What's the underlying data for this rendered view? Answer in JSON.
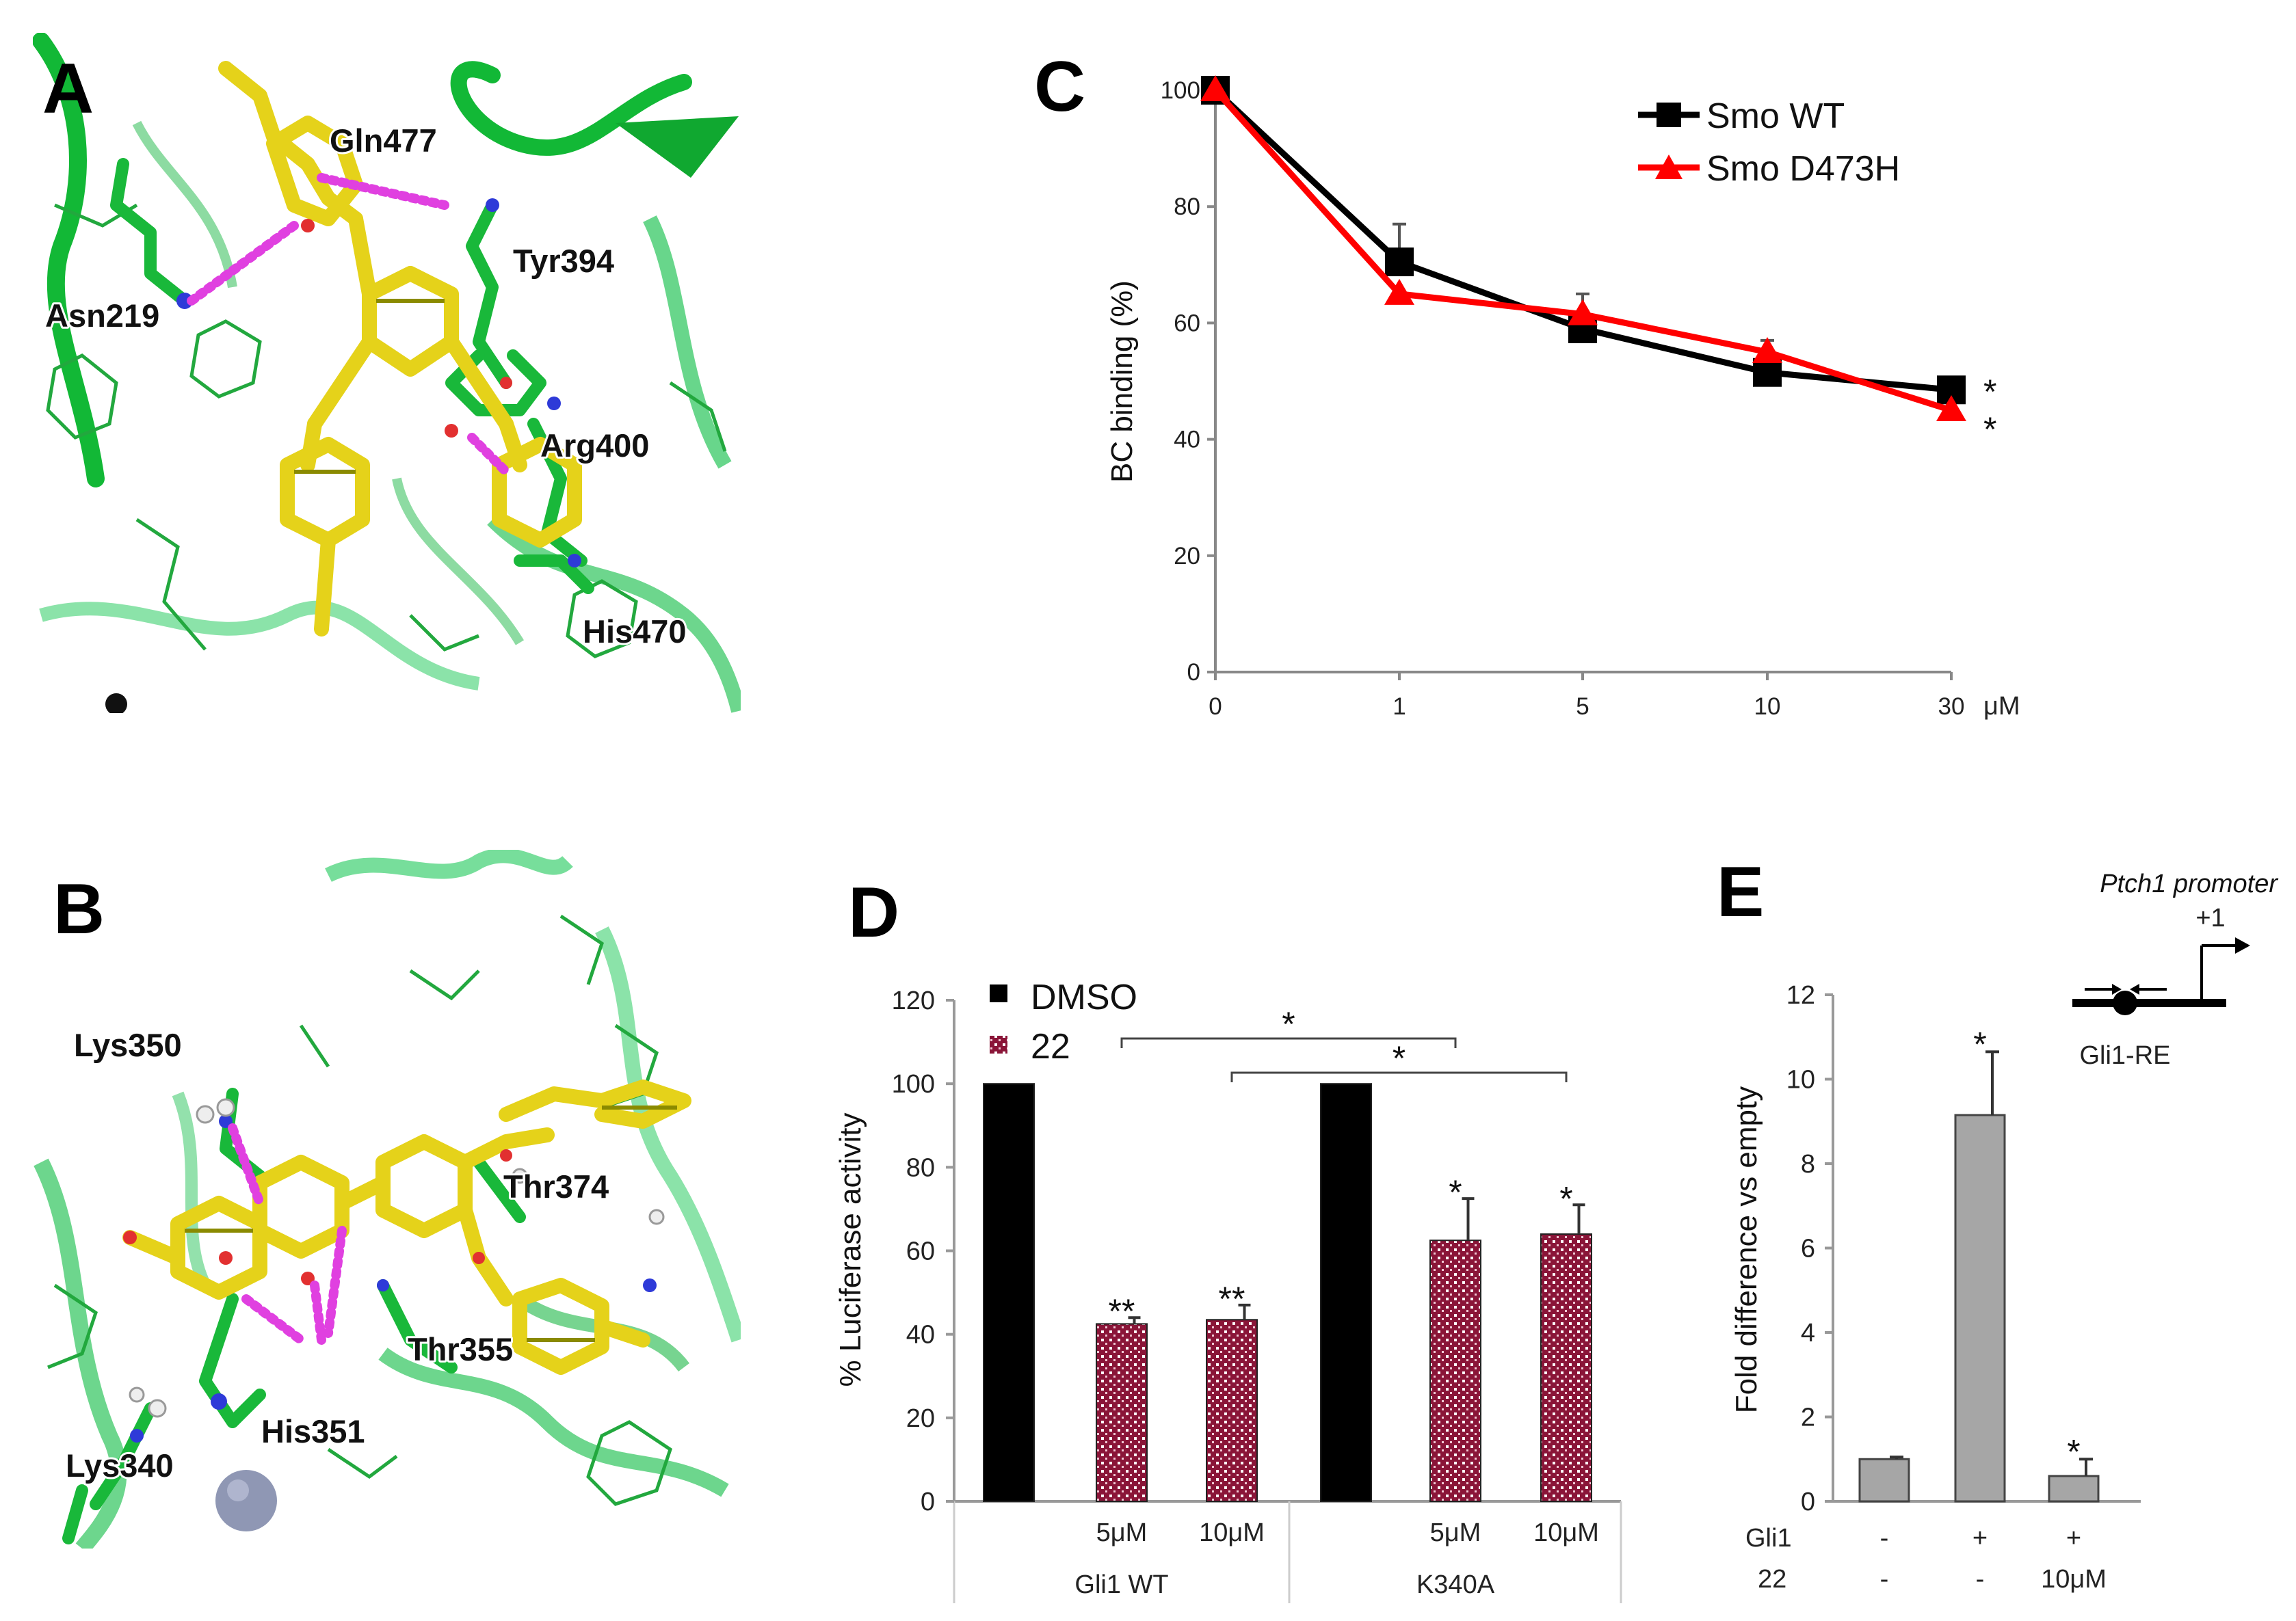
{
  "panels": {
    "A": {
      "label": "A",
      "residues": [
        "Gln477",
        "Tyr394",
        "Asn219",
        "Arg400",
        "His470"
      ]
    },
    "B": {
      "label": "B",
      "residues": [
        "Lys350",
        "Thr374",
        "Thr355",
        "His351",
        "Lys340"
      ]
    }
  },
  "chart_data": [
    {
      "panel": "C",
      "type": "line",
      "title": "",
      "xlabel": "",
      "ylabel": "BC binding (%)",
      "unit": "μM",
      "categories": [
        "0",
        "1",
        "5",
        "10",
        "30"
      ],
      "ylim": [
        0,
        100
      ],
      "yticks": [
        0,
        20,
        40,
        60,
        80,
        100
      ],
      "series": [
        {
          "name": "Smo WT",
          "color": "#000000",
          "marker": "square",
          "values": [
            100,
            70.5,
            59,
            51.5,
            48.5
          ],
          "errors": [
            0,
            6.5,
            0,
            0,
            0
          ]
        },
        {
          "name": "Smo D473H",
          "color": "#ff0000",
          "marker": "triangle",
          "values": [
            100,
            65,
            61.5,
            55,
            45
          ],
          "errors": [
            0,
            0,
            3.5,
            2,
            0
          ]
        }
      ],
      "significance": [
        "*",
        "*"
      ],
      "legend": "top-right"
    },
    {
      "panel": "D",
      "type": "bar",
      "title": "",
      "ylabel": "% Luciferase activity",
      "ylim": [
        0,
        120
      ],
      "yticks": [
        0,
        20,
        40,
        60,
        80,
        100,
        120
      ],
      "groups": [
        "Gli1 WT",
        "K340A"
      ],
      "categories": [
        "",
        "5μM",
        "10μM",
        "",
        "5μM",
        "10μM"
      ],
      "series_names": [
        "DMSO",
        "22"
      ],
      "bars": [
        {
          "series": "DMSO",
          "value": 100,
          "error": 0,
          "sig": ""
        },
        {
          "series": "22",
          "value": 42.5,
          "error": 1.5,
          "sig": "**"
        },
        {
          "series": "22",
          "value": 43.5,
          "error": 3.5,
          "sig": "**"
        },
        {
          "series": "DMSO",
          "value": 100,
          "error": 0,
          "sig": ""
        },
        {
          "series": "22",
          "value": 62.5,
          "error": 10,
          "sig": "*"
        },
        {
          "series": "22",
          "value": 64,
          "error": 7,
          "sig": "*"
        }
      ],
      "brackets": [
        {
          "from": 1,
          "to": 4,
          "sig": "*"
        },
        {
          "from": 2,
          "to": 5,
          "sig": "*"
        }
      ],
      "colors": {
        "DMSO": "#000000",
        "22": "#8a1538"
      },
      "legend": "top-left"
    },
    {
      "panel": "E",
      "type": "bar",
      "title": "",
      "ylabel": "Fold difference vs empty",
      "ylim": [
        0,
        12
      ],
      "yticks": [
        0,
        2,
        4,
        6,
        8,
        10,
        12
      ],
      "row_labels": [
        "Gli1",
        "22"
      ],
      "conditions": [
        {
          "gli1": "-",
          "c22": "-",
          "value": 1.0,
          "error": 0.05,
          "sig": ""
        },
        {
          "gli1": "+",
          "c22": "-",
          "value": 9.15,
          "error": 1.5,
          "sig": "*"
        },
        {
          "gli1": "+",
          "c22": "10μM",
          "value": 0.6,
          "error": 0.4,
          "sig": "*"
        }
      ],
      "color": "#a6a6a6",
      "schematic": {
        "promoter": "Ptch1 promoter",
        "tss": "+1",
        "element": "Gli1-RE"
      }
    }
  ]
}
